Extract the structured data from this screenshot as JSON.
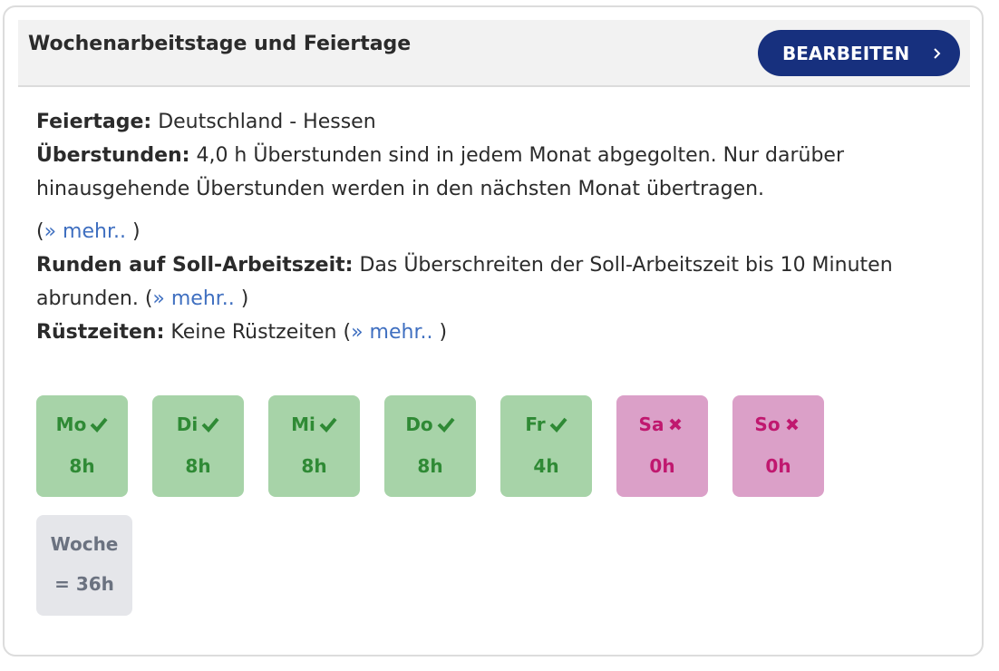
{
  "header": {
    "title": "Wochenarbeitstage und Feiertage",
    "button": "BEARBEITEN"
  },
  "info": [
    {
      "label": "Feiertage:",
      "text": "Deutschland - Hessen"
    },
    {
      "label": "Überstunden:",
      "text": "4,0 h Überstunden sind in jedem Monat abgegolten. Nur darüber hinausgehende Überstunden werden in den nächsten Monat übertragen.",
      "more": {
        "open": "(",
        "link": "» mehr..",
        "close": ")"
      },
      "more_block": true
    },
    {
      "label": "Runden auf Soll-Arbeitszeit:",
      "text": "Das Überschreiten der Soll-Arbeitszeit bis 10 Minuten abrunden.",
      "more": {
        "open": "(",
        "link": "» mehr..",
        "close": ")"
      }
    },
    {
      "label": "Rüstzeiten:",
      "text": "Keine Rüstzeiten",
      "more": {
        "open": "(",
        "link": "» mehr..",
        "close": ")"
      }
    }
  ],
  "days": [
    {
      "day": "Mo",
      "hours": "8h",
      "active": true
    },
    {
      "day": "Di",
      "hours": "8h",
      "active": true
    },
    {
      "day": "Mi",
      "hours": "8h",
      "active": true
    },
    {
      "day": "Do",
      "hours": "8h",
      "active": true
    },
    {
      "day": "Fr",
      "hours": "4h",
      "active": true
    },
    {
      "day": "Sa",
      "hours": "0h",
      "active": false
    },
    {
      "day": "So",
      "hours": "0h",
      "active": false
    }
  ],
  "week": {
    "label": "Woche",
    "total": "= 36h"
  }
}
